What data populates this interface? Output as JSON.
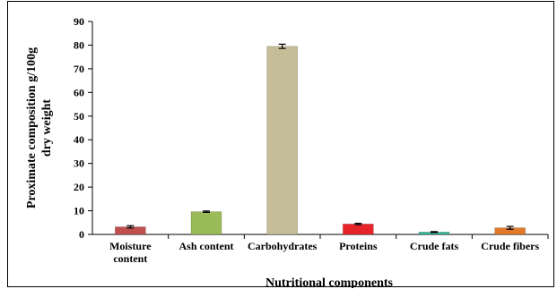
{
  "chart_data": {
    "type": "bar",
    "categories": [
      [
        "Moisture",
        "content"
      ],
      [
        "Ash content"
      ],
      [
        "Carbohydrates"
      ],
      [
        "Proteins"
      ],
      [
        "Crude fats"
      ],
      [
        "Crude fibers"
      ]
    ],
    "values": [
      3.2,
      9.6,
      79.5,
      4.4,
      1.0,
      2.8
    ],
    "errors": [
      0.5,
      0.3,
      0.9,
      0.3,
      0.2,
      0.6
    ],
    "colors": [
      "#c0504d",
      "#9bbb59",
      "#c4bd97",
      "#e8242b",
      "#3ab79b",
      "#e07a2a"
    ],
    "xlabel": "Nutritional components",
    "ylabel": [
      "Proximate composition g/100g",
      "dry weight"
    ],
    "ylim": [
      0,
      90
    ],
    "yticks": [
      0,
      10,
      20,
      30,
      40,
      50,
      60,
      70,
      80,
      90
    ],
    "grid": false,
    "legend": "none"
  }
}
